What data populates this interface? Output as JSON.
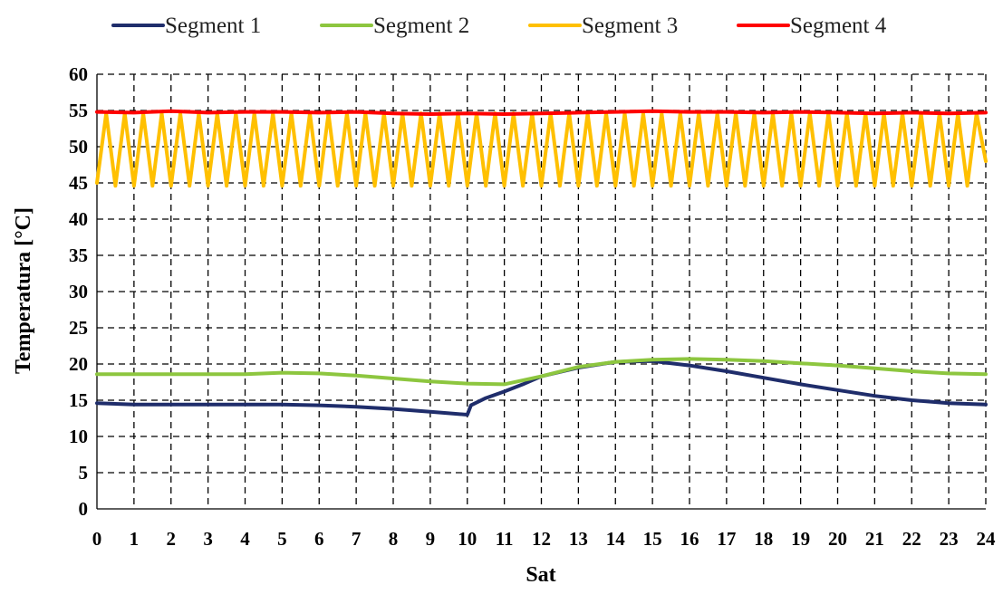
{
  "chart_data": {
    "type": "line",
    "title": "",
    "xlabel": "Sat",
    "ylabel": "Temperatura [°C]",
    "xlim": [
      0,
      24
    ],
    "ylim": [
      0,
      60
    ],
    "xticks": [
      0,
      1,
      2,
      3,
      4,
      5,
      6,
      7,
      8,
      9,
      10,
      11,
      12,
      13,
      14,
      15,
      16,
      17,
      18,
      19,
      20,
      21,
      22,
      23,
      24
    ],
    "yticks": [
      0,
      5,
      10,
      15,
      20,
      25,
      30,
      35,
      40,
      45,
      50,
      55,
      60
    ],
    "grid": true,
    "legend_position": "top",
    "series": [
      {
        "name": "Segment 1",
        "color": "#1f2d6b",
        "x": [
          0,
          1,
          2,
          3,
          4,
          5,
          6,
          7,
          8,
          9,
          9.5,
          10,
          10.1,
          10.5,
          11,
          11.5,
          12,
          13,
          14,
          15,
          16,
          17,
          18,
          19,
          20,
          21,
          22,
          23,
          24
        ],
        "y": [
          14.6,
          14.4,
          14.4,
          14.4,
          14.4,
          14.4,
          14.3,
          14.1,
          13.8,
          13.4,
          13.2,
          13.0,
          14.3,
          15.3,
          16.2,
          17.2,
          18.3,
          19.5,
          20.3,
          20.4,
          19.8,
          19.0,
          18.1,
          17.2,
          16.4,
          15.6,
          15.0,
          14.6,
          14.4
        ]
      },
      {
        "name": "Segment 2",
        "color": "#8dc63f",
        "x": [
          0,
          1,
          2,
          3,
          4,
          5,
          6,
          7,
          8,
          9,
          10,
          11,
          12,
          13,
          14,
          15,
          16,
          17,
          18,
          19,
          20,
          21,
          22,
          23,
          24
        ],
        "y": [
          18.6,
          18.6,
          18.6,
          18.6,
          18.6,
          18.8,
          18.7,
          18.4,
          18.0,
          17.6,
          17.3,
          17.2,
          18.3,
          19.6,
          20.3,
          20.6,
          20.7,
          20.6,
          20.4,
          20.1,
          19.8,
          19.4,
          19.0,
          18.7,
          18.6
        ]
      },
      {
        "name": "Segment 3",
        "color": "#ffc000",
        "x": [
          0,
          0.25,
          0.5,
          0.75,
          1,
          1.25,
          1.5,
          1.75,
          2,
          2.25,
          2.5,
          2.75,
          3,
          3.25,
          3.5,
          3.75,
          4,
          4.25,
          4.5,
          4.75,
          5,
          5.25,
          5.5,
          5.75,
          6,
          6.25,
          6.5,
          6.75,
          7,
          7.25,
          7.5,
          7.75,
          8,
          8.25,
          8.5,
          8.75,
          9,
          9.25,
          9.5,
          9.75,
          10,
          10.25,
          10.5,
          10.75,
          11,
          11.25,
          11.5,
          11.75,
          12,
          12.25,
          12.5,
          12.75,
          13,
          13.25,
          13.5,
          13.75,
          14,
          14.25,
          14.5,
          14.75,
          15,
          15.25,
          15.5,
          15.75,
          16,
          16.25,
          16.5,
          16.75,
          17,
          17.25,
          17.5,
          17.75,
          18,
          18.25,
          18.5,
          18.75,
          19,
          19.25,
          19.5,
          19.75,
          20,
          20.25,
          20.5,
          20.75,
          21,
          21.25,
          21.5,
          21.75,
          22,
          22.25,
          22.5,
          22.75,
          23,
          23.25,
          23.5,
          23.75,
          24
        ],
        "y": [
          45,
          54.6,
          44.6,
          54.6,
          44.6,
          54.6,
          44.6,
          54.6,
          44.6,
          54.6,
          44.6,
          54.6,
          44.6,
          54.6,
          44.6,
          54.6,
          44.6,
          54.6,
          44.6,
          54.6,
          44.6,
          54.6,
          44.6,
          54.6,
          44.6,
          54.6,
          44.6,
          54.6,
          44.6,
          54.6,
          44.6,
          54.6,
          44.6,
          54.6,
          44.6,
          54.6,
          44.6,
          54.6,
          44.6,
          54.6,
          44.6,
          54.6,
          44.6,
          54.6,
          44.6,
          54.6,
          44.6,
          54.6,
          44.6,
          54.6,
          44.6,
          54.6,
          44.6,
          54.6,
          44.6,
          54.6,
          44.6,
          54.6,
          44.6,
          54.6,
          44.6,
          54.6,
          44.6,
          54.6,
          44.6,
          54.6,
          44.6,
          54.6,
          44.6,
          54.6,
          44.6,
          54.6,
          44.6,
          54.6,
          44.6,
          54.6,
          44.6,
          54.6,
          44.6,
          54.6,
          44.6,
          54.6,
          44.6,
          54.6,
          44.6,
          54.6,
          44.6,
          54.6,
          44.6,
          54.6,
          44.6,
          54.6,
          44.6,
          54.6,
          44.6,
          54.6,
          48
        ]
      },
      {
        "name": "Segment 4",
        "color": "#ff0000",
        "x": [
          0,
          1,
          2,
          3,
          4,
          5,
          6,
          7,
          8,
          9,
          10,
          11,
          12,
          13,
          14,
          15,
          16,
          17,
          18,
          19,
          20,
          21,
          22,
          23,
          24
        ],
        "y": [
          54.8,
          54.7,
          54.9,
          54.7,
          54.8,
          54.8,
          54.7,
          54.8,
          54.6,
          54.5,
          54.6,
          54.5,
          54.6,
          54.7,
          54.8,
          54.9,
          54.8,
          54.8,
          54.7,
          54.8,
          54.7,
          54.6,
          54.7,
          54.6,
          54.7
        ]
      }
    ]
  }
}
